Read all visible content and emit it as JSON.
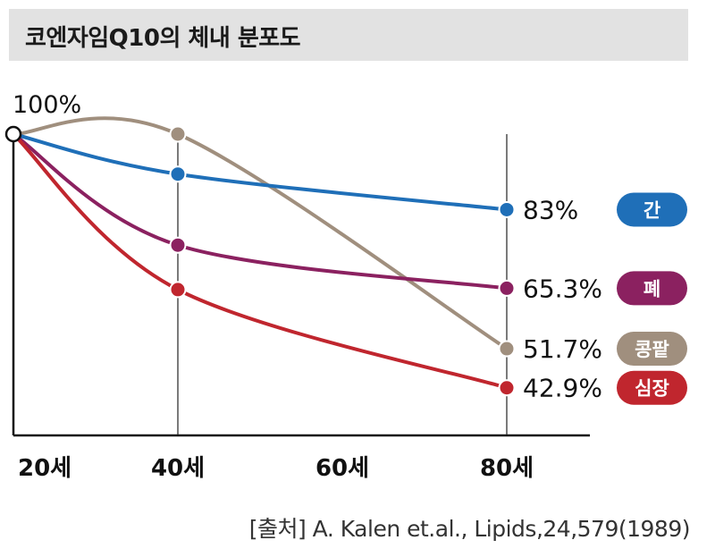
{
  "title": "코엔자임Q10의 체내 분포도",
  "source": "[출처] A. Kalen et.al., Lipids,24,579(1989)",
  "chart_data": {
    "type": "line",
    "x": [
      20,
      40,
      60,
      80
    ],
    "x_tick_labels": [
      "20세",
      "40세",
      "60세",
      "80세"
    ],
    "ylim": [
      35,
      100
    ],
    "start_label": "100%",
    "series": [
      {
        "name": "간",
        "color": "#1f6fb8",
        "points": [
          [
            20,
            100
          ],
          [
            40,
            91
          ],
          [
            80,
            83
          ]
        ],
        "end_label": "83%"
      },
      {
        "name": "폐",
        "color": "#8b2160",
        "points": [
          [
            20,
            100
          ],
          [
            40,
            75
          ],
          [
            80,
            65.3
          ]
        ],
        "end_label": "65.3%"
      },
      {
        "name": "콩팥",
        "color": "#a08f7e",
        "points": [
          [
            20,
            100
          ],
          [
            40,
            100
          ],
          [
            80,
            51.7
          ]
        ],
        "end_label": "51.7%"
      },
      {
        "name": "심장",
        "color": "#c0262e",
        "points": [
          [
            20,
            100
          ],
          [
            40,
            65
          ],
          [
            80,
            42.9
          ]
        ],
        "end_label": "42.9%"
      }
    ]
  }
}
